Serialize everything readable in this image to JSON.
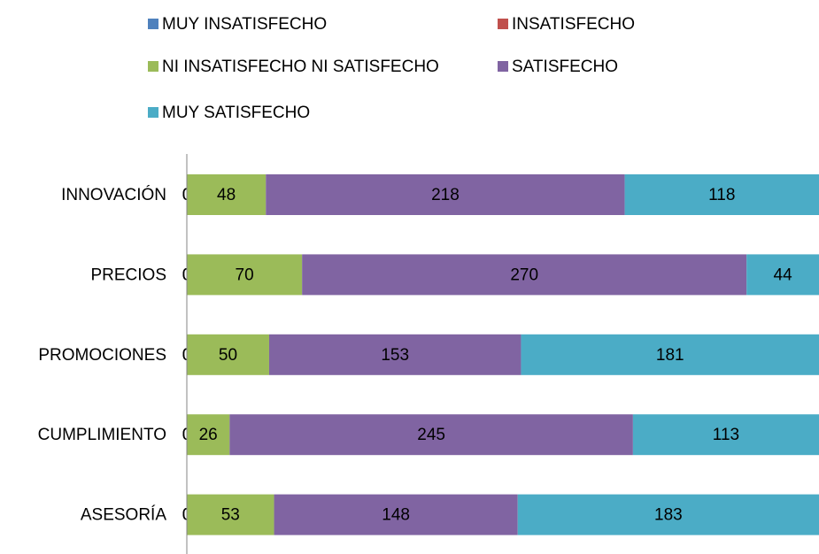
{
  "chart_data": {
    "type": "stacked-bar-horizontal",
    "categories": [
      "INNOVACIÓN",
      "PRECIOS",
      "PROMOCIONES",
      "CUMPLIMIENTO",
      "ASESORÍA"
    ],
    "series": [
      {
        "name": "MUY INSATISFECHO",
        "color": "#4f81bd",
        "values": [
          0,
          0,
          0,
          0,
          0
        ]
      },
      {
        "name": "INSATISFECHO",
        "color": "#c0504d",
        "values": [
          0,
          0,
          0,
          0,
          0
        ]
      },
      {
        "name": "NI INSATISFECHO NI SATISFECHO",
        "color": "#9bbb59",
        "values": [
          48,
          70,
          50,
          26,
          53
        ]
      },
      {
        "name": "SATISFECHO",
        "color": "#8064a2",
        "values": [
          218,
          270,
          153,
          245,
          148
        ]
      },
      {
        "name": "MUY SATISFECHO",
        "color": "#4bacc6",
        "values": [
          118,
          44,
          181,
          113,
          183
        ]
      }
    ],
    "xlim": [
      0,
      384
    ],
    "legend": "top"
  }
}
